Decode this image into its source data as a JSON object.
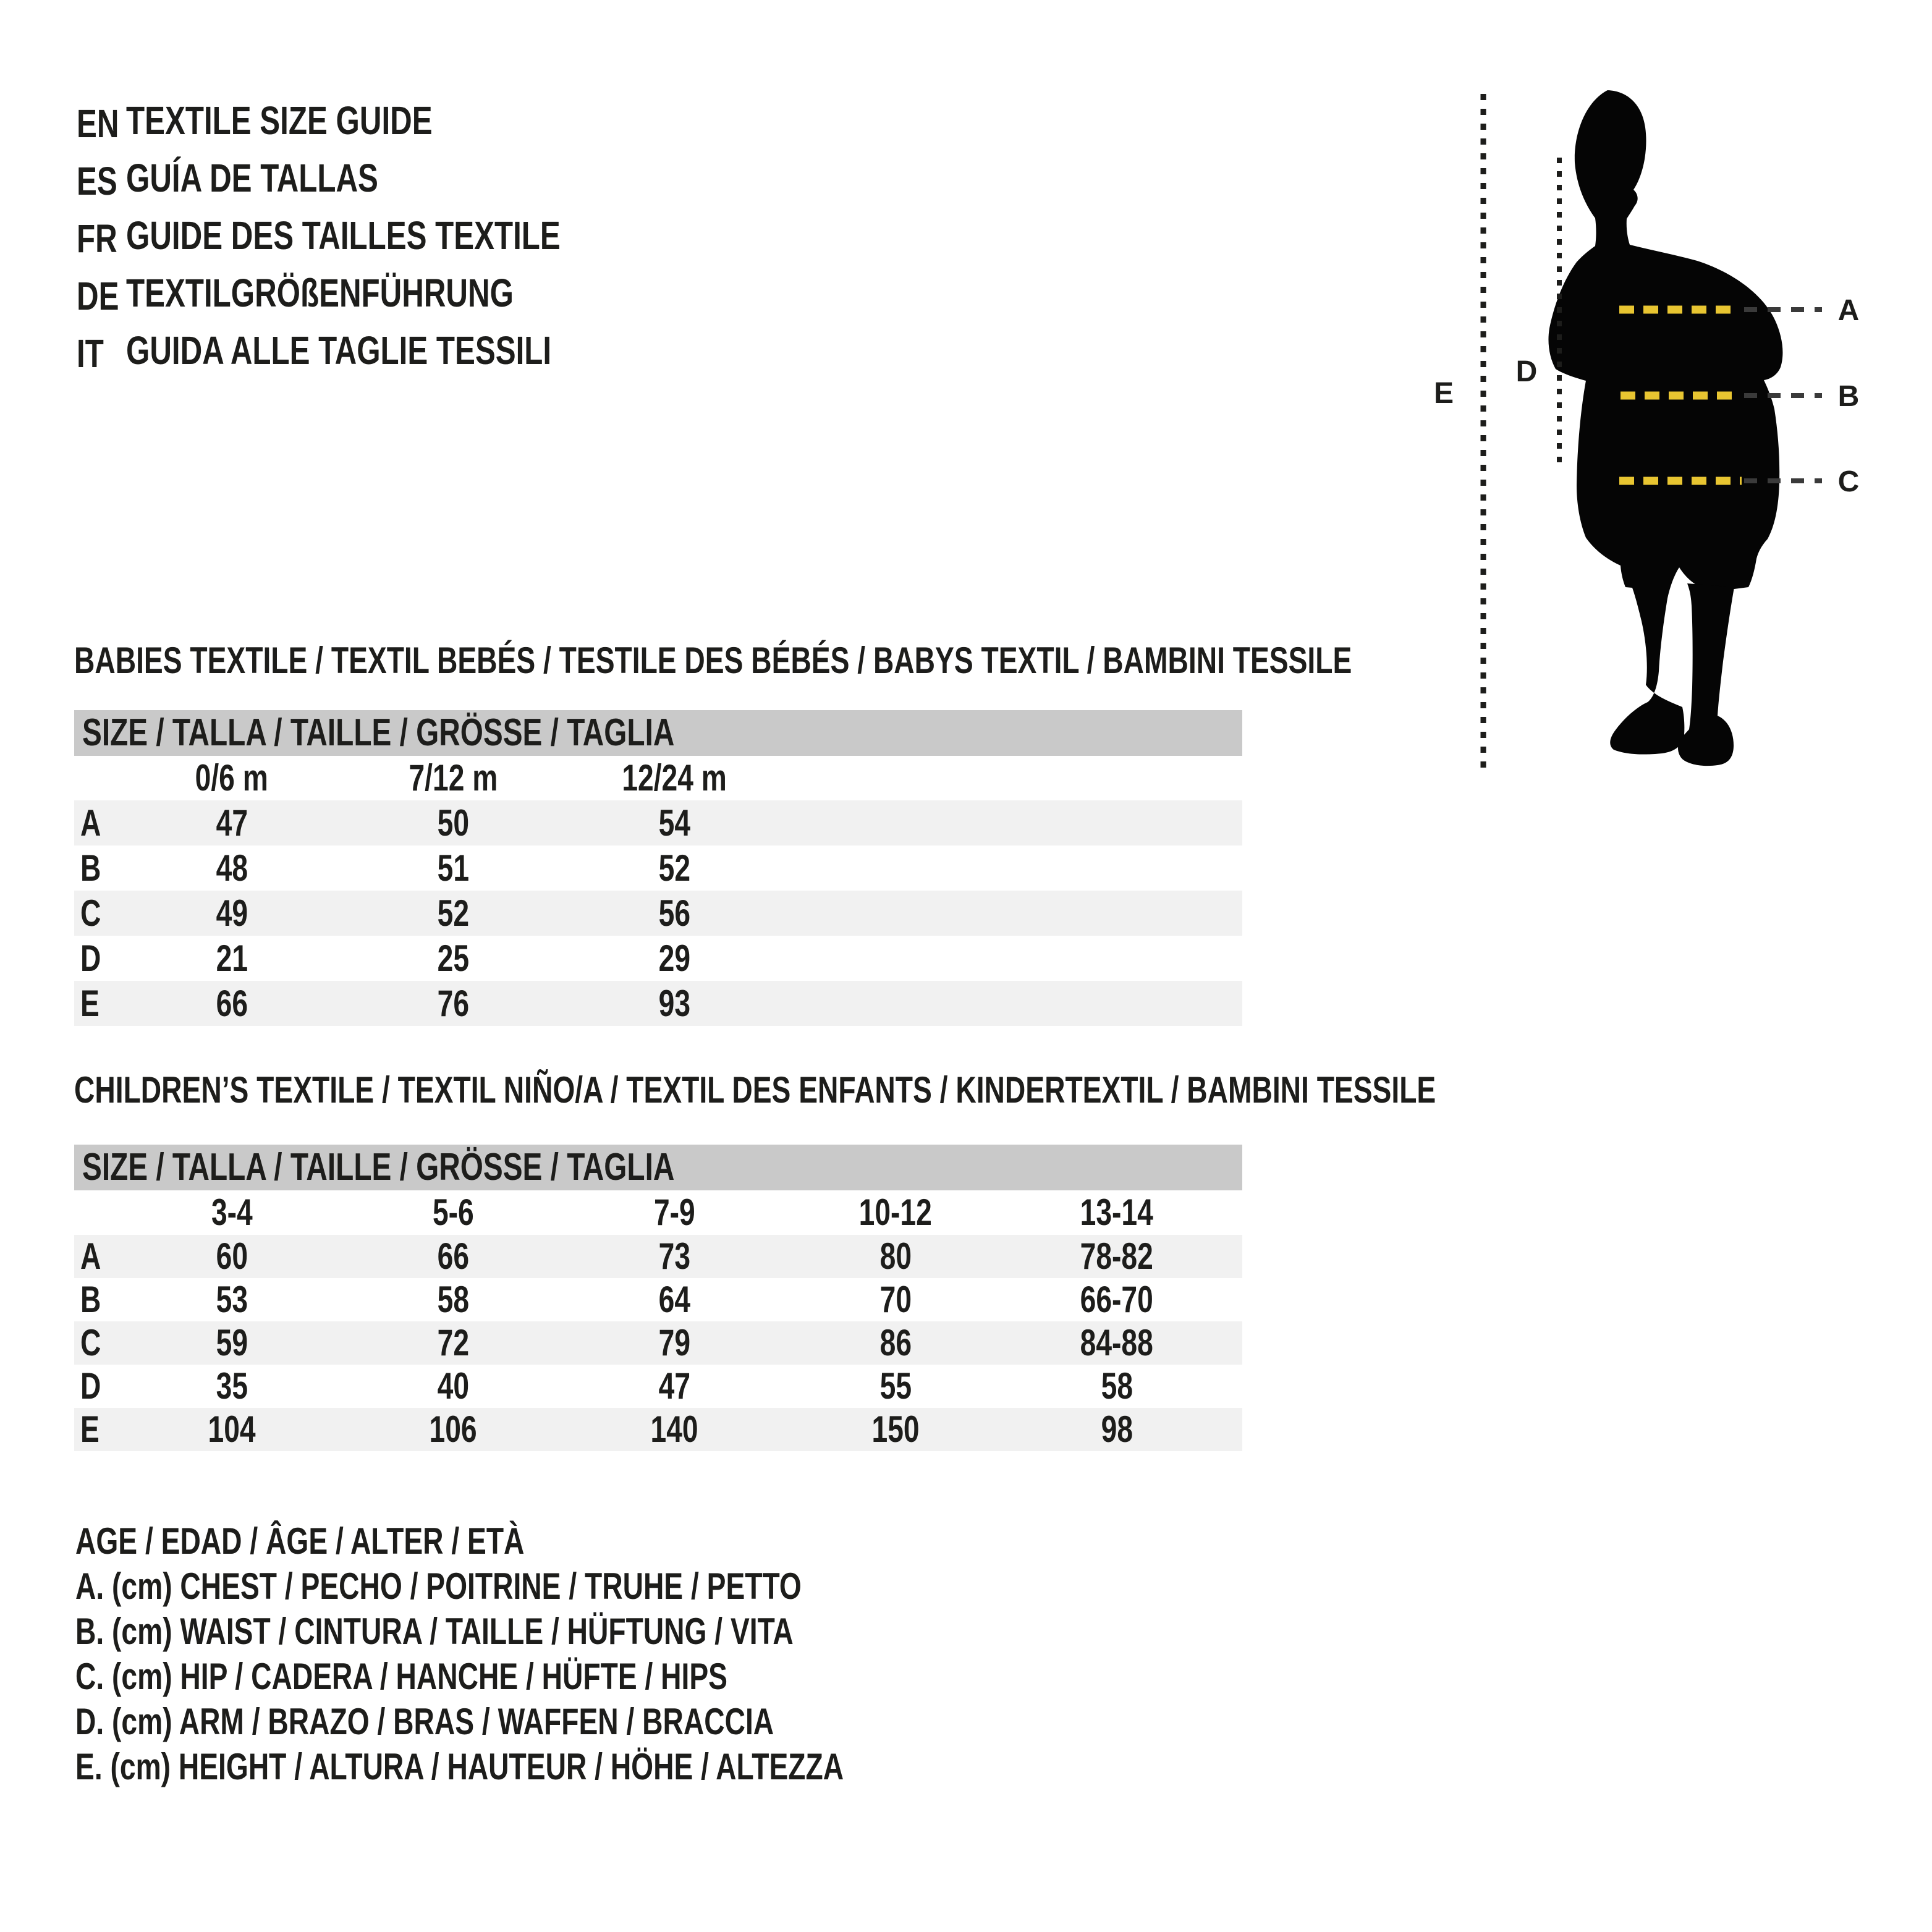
{
  "colors": {
    "text": "#1d1d1b",
    "header_bar": "#c9c9c9",
    "row_shade": "#f1f1f1",
    "measure_yellow": "#e8c531",
    "silhouette": "#050505"
  },
  "languages": [
    {
      "code": "EN",
      "title": "TEXTILE SIZE GUIDE"
    },
    {
      "code": "ES",
      "title": "GUÍA DE TALLAS"
    },
    {
      "code": "FR",
      "title": "GUIDE DES TAILLES TEXTILE"
    },
    {
      "code": "DE",
      "title": "TEXTILGRÖßENFÜHRUNG"
    },
    {
      "code": "IT",
      "title": "GUIDA ALLE TAGLIE TESSILI"
    }
  ],
  "figure": {
    "labels": {
      "a": "A",
      "b": "B",
      "c": "C",
      "d": "D",
      "e": "E"
    }
  },
  "sections": [
    {
      "heading": "BABIES TEXTILE / TEXTIL BEBÉS / TESTILE DES BÉBÉS / BABYS TEXTIL / BAMBINI TESSILE",
      "size_header": "SIZE / TALLA / TAILLE / GRÖSSE / TAGLIA",
      "columns": [
        "0/6 m",
        "7/12 m",
        "12/24 m"
      ],
      "rows": [
        {
          "label": "A",
          "values": [
            "47",
            "50",
            "54"
          ]
        },
        {
          "label": "B",
          "values": [
            "48",
            "51",
            "52"
          ]
        },
        {
          "label": "C",
          "values": [
            "49",
            "52",
            "56"
          ]
        },
        {
          "label": "D",
          "values": [
            "21",
            "25",
            "29"
          ]
        },
        {
          "label": "E",
          "values": [
            "66",
            "76",
            "93"
          ]
        }
      ]
    },
    {
      "heading": "CHILDREN’S TEXTILE / TEXTIL NIÑO/A / TEXTIL DES ENFANTS / KINDERTEXTIL / BAMBINI TESSILE",
      "size_header": "SIZE / TALLA / TAILLE / GRÖSSE / TAGLIA",
      "columns": [
        "3-4",
        "5-6",
        "7-9",
        "10-12",
        "13-14"
      ],
      "rows": [
        {
          "label": "A",
          "values": [
            "60",
            "66",
            "73",
            "80",
            "78-82"
          ]
        },
        {
          "label": "B",
          "values": [
            "53",
            "58",
            "64",
            "70",
            "66-70"
          ]
        },
        {
          "label": "C",
          "values": [
            "59",
            "72",
            "79",
            "86",
            "84-88"
          ]
        },
        {
          "label": "D",
          "values": [
            "35",
            "40",
            "47",
            "55",
            "58"
          ]
        },
        {
          "label": "E",
          "values": [
            "104",
            "106",
            "140",
            "150",
            "98"
          ]
        }
      ]
    }
  ],
  "legend": {
    "lines": [
      "AGE / EDAD / ÂGE / ALTER / ETÀ",
      "A. (cm) CHEST / PECHO / POITRINE / TRUHE / PETTO",
      "B. (cm) WAIST / CINTURA / TAILLE / HÜFTUNG / VITA",
      "C. (cm) HIP / CADERA / HANCHE / HÜFTE / HIPS",
      "D. (cm) ARM / BRAZO / BRAS / WAFFEN / BRACCIA",
      "E. (cm) HEIGHT / ALTURA / HAUTEUR / HÖHE / ALTEZZA"
    ]
  }
}
